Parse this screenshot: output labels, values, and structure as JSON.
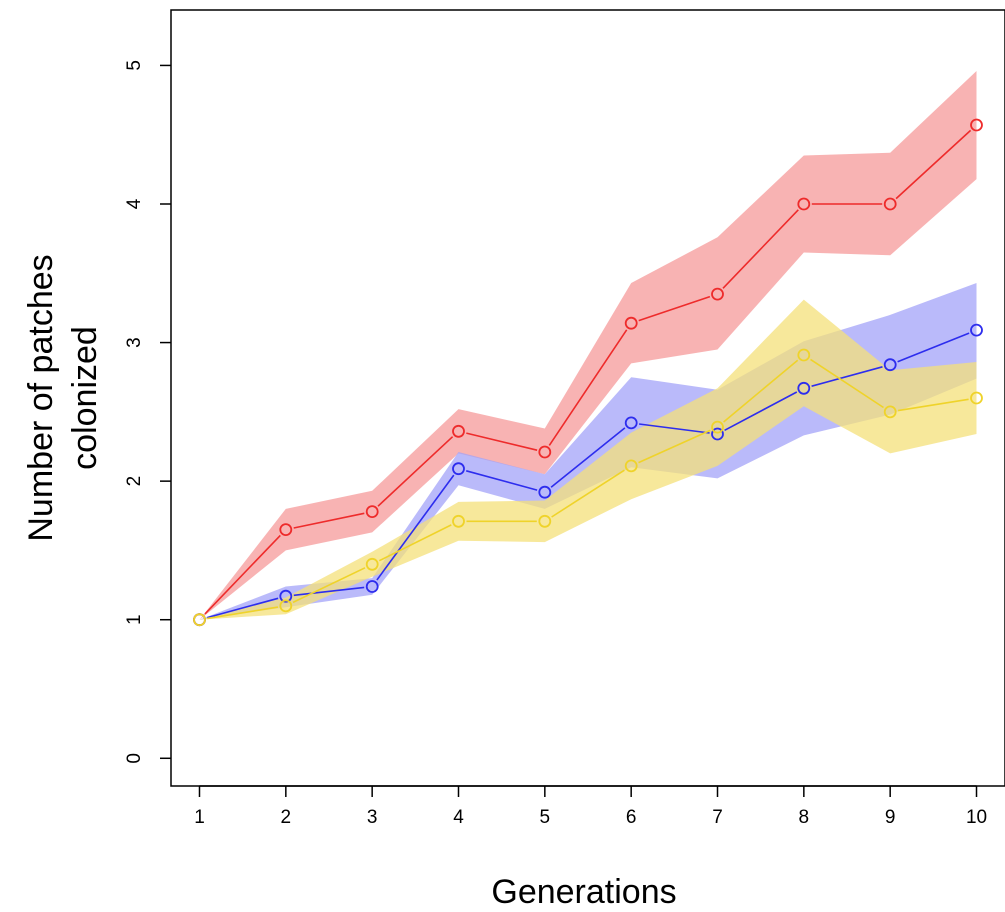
{
  "chart_data": {
    "type": "line",
    "title": "",
    "xlabel": "Generations",
    "ylabel_lines": [
      "Number of patches",
      "colonized"
    ],
    "x": [
      1,
      2,
      3,
      4,
      5,
      6,
      7,
      8,
      9,
      10
    ],
    "xlim": [
      0.67,
      10.33
    ],
    "ylim": [
      -0.2,
      5.4
    ],
    "xticks": [
      1,
      2,
      3,
      4,
      5,
      6,
      7,
      8,
      9,
      10
    ],
    "yticks": [
      0,
      1,
      2,
      3,
      4,
      5
    ],
    "grid": false,
    "legend": "none",
    "series": [
      {
        "color": "#ee2b2b",
        "band_color": "#f59a9a",
        "values": [
          1.0,
          1.65,
          1.78,
          2.36,
          2.21,
          3.14,
          3.35,
          4.0,
          4.0,
          4.57
        ],
        "lower": [
          1.0,
          1.5,
          1.63,
          2.2,
          2.05,
          2.85,
          2.95,
          3.65,
          3.63,
          4.18
        ],
        "upper": [
          1.0,
          1.8,
          1.93,
          2.52,
          2.38,
          3.43,
          3.76,
          4.35,
          4.37,
          4.96
        ]
      },
      {
        "color": "#2d2dee",
        "band_color": "#a3a3f8",
        "values": [
          1.0,
          1.17,
          1.24,
          2.09,
          1.92,
          2.42,
          2.34,
          2.67,
          2.84,
          3.09
        ],
        "lower": [
          1.0,
          1.09,
          1.18,
          1.97,
          1.8,
          2.1,
          2.02,
          2.33,
          2.48,
          2.74
        ],
        "upper": [
          1.0,
          1.24,
          1.3,
          2.21,
          2.05,
          2.75,
          2.66,
          3.01,
          3.2,
          3.43
        ]
      },
      {
        "color": "#efd32a",
        "band_color": "#f4e07a",
        "values": [
          1.0,
          1.1,
          1.4,
          1.71,
          1.71,
          2.11,
          2.39,
          2.91,
          2.5,
          2.6
        ],
        "lower": [
          1.0,
          1.04,
          1.31,
          1.57,
          1.56,
          1.87,
          2.11,
          2.54,
          2.2,
          2.34
        ],
        "upper": [
          1.0,
          1.16,
          1.49,
          1.85,
          1.86,
          2.35,
          2.67,
          3.31,
          2.8,
          2.86
        ]
      }
    ]
  }
}
